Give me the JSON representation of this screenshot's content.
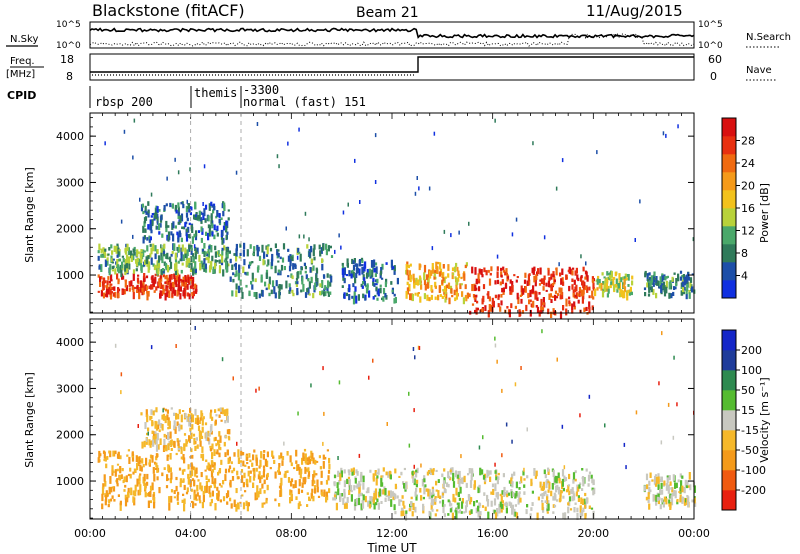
{
  "header": {
    "station": "Blackstone (fitACF)",
    "beam": "Beam 21",
    "date": "11/Aug/2015"
  },
  "top_panels": {
    "nsky_label": "N.Sky",
    "nsky_ticks": [
      "10^5",
      "10^0"
    ],
    "nsearch_label": "N.Search",
    "nsearch_ticks": [
      "10^5",
      "10^0"
    ],
    "freq_label": "Freq.",
    "freq_unit": "[MHz]",
    "freq_ticks": [
      "18",
      "8"
    ],
    "nave_label": "Nave",
    "nave_ticks": [
      "60",
      "0"
    ],
    "cpid_label": "CPID",
    "cpid_segments": [
      {
        "label": "rbsp 200",
        "start_hr": 0
      },
      {
        "label": "themis",
        "start_hr": 4.0
      },
      {
        "label": "-3300",
        "start_hr": 6.0
      },
      {
        "label": "normal (fast) 151",
        "start_hr": 6.0
      }
    ]
  },
  "chart_data": [
    {
      "type": "heatmap",
      "name": "power",
      "ylabel": "Slant Range [km]",
      "yticks": [
        1000,
        2000,
        3000,
        4000
      ],
      "ylim": [
        180,
        4500
      ],
      "xlim": [
        0,
        24
      ],
      "colorbar": {
        "label": "Power [dB]",
        "ticks": [
          "4",
          "8",
          "12",
          "16",
          "20",
          "24",
          "28"
        ],
        "colors": [
          "#1030e0",
          "#1d4fa8",
          "#2f7a5a",
          "#4aa86a",
          "#b8d23a",
          "#f2c21c",
          "#f59a1a",
          "#f06a10",
          "#e83010",
          "#d81010"
        ]
      },
      "echo_regions": [
        {
          "x0": 0.3,
          "x1": 4.2,
          "y0": 600,
          "y1": 1050,
          "level": 26
        },
        {
          "x0": 0.3,
          "x1": 5.5,
          "y0": 1100,
          "y1": 1700,
          "level": 10
        },
        {
          "x0": 2.0,
          "x1": 5.5,
          "y0": 1800,
          "y1": 2600,
          "level": 6
        },
        {
          "x0": 5.5,
          "x1": 9.6,
          "y0": 600,
          "y1": 1700,
          "level": 8
        },
        {
          "x0": 10.0,
          "x1": 12.2,
          "y0": 500,
          "y1": 1400,
          "level": 6
        },
        {
          "x0": 12.5,
          "x1": 15.0,
          "y0": 500,
          "y1": 1300,
          "level": 18
        },
        {
          "x0": 15.0,
          "x1": 20.0,
          "y0": 200,
          "y1": 1200,
          "level": 26
        },
        {
          "x0": 20.0,
          "x1": 21.5,
          "y0": 600,
          "y1": 1100,
          "level": 14
        },
        {
          "x0": 22.0,
          "x1": 24.0,
          "y0": 600,
          "y1": 1100,
          "level": 8
        }
      ]
    },
    {
      "type": "heatmap",
      "name": "velocity",
      "ylabel": "Slant Range [km]",
      "yticks": [
        1000,
        2000,
        3000,
        4000
      ],
      "ylim": [
        180,
        4500
      ],
      "xlim": [
        0,
        24
      ],
      "xticks": [
        "00:00",
        "04:00",
        "08:00",
        "12:00",
        "16:00",
        "20:00",
        "00:00"
      ],
      "xlabel": "Time UT",
      "colorbar": {
        "label": "Velocity [m s⁻¹]",
        "ticks": [
          "-200",
          "-100",
          "-50",
          "-15",
          "15",
          "50",
          "100",
          "200"
        ],
        "colors": [
          "#e82010",
          "#f05a10",
          "#f49a1a",
          "#f5b82a",
          "#c8c8c0",
          "#55bb30",
          "#2e8a50",
          "#1f3c9a",
          "#1426c8"
        ]
      },
      "echo_regions": [
        {
          "x0": 0.3,
          "x1": 9.5,
          "y0": 500,
          "y1": 1700,
          "value": -50
        },
        {
          "x0": 2.0,
          "x1": 5.5,
          "y0": 1700,
          "y1": 2600,
          "value": -30
        },
        {
          "x0": 9.6,
          "x1": 12.0,
          "y0": 500,
          "y1": 1300,
          "value": 0
        },
        {
          "x0": 12.0,
          "x1": 20.0,
          "y0": 300,
          "y1": 1300,
          "value": 0
        },
        {
          "x0": 22.0,
          "x1": 24.0,
          "y0": 500,
          "y1": 1200,
          "value": 0
        }
      ]
    }
  ]
}
